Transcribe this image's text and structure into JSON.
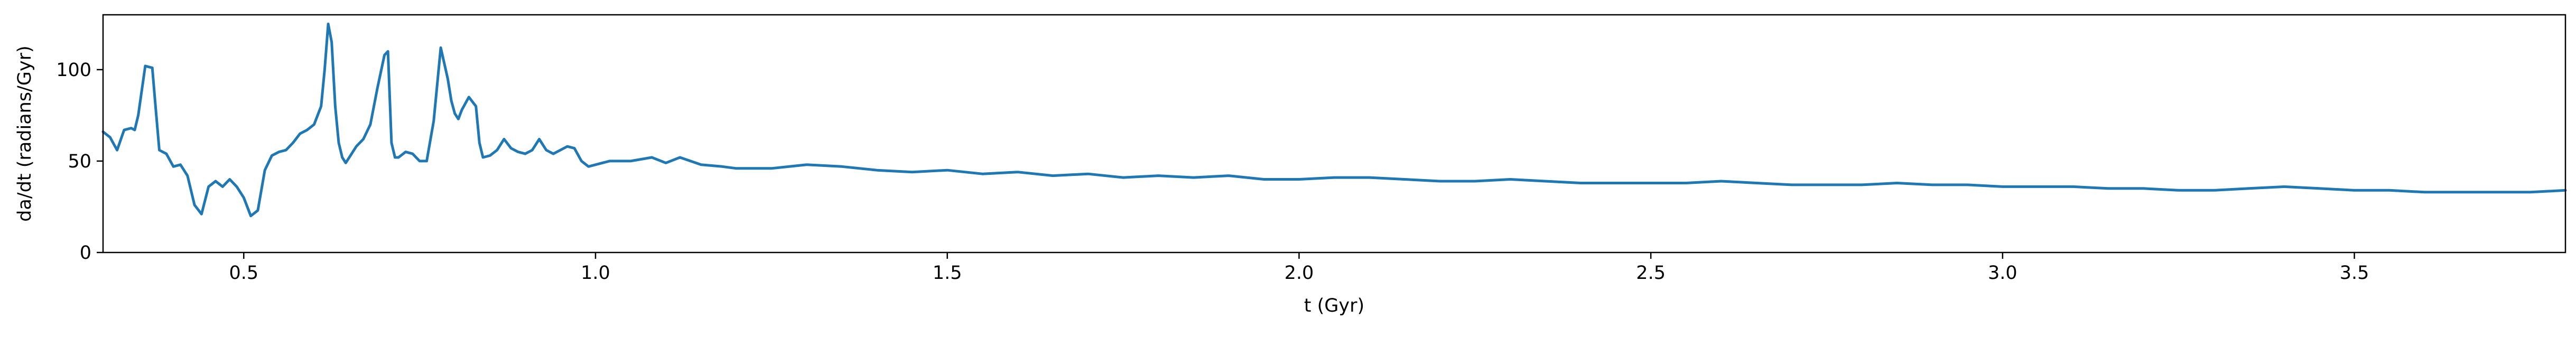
{
  "chart_data": {
    "type": "line",
    "title": "",
    "xlabel": "t (Gyr)",
    "ylabel": "da/dt (radians/Gyr)",
    "xlim": [
      0.3,
      3.8
    ],
    "ylim": [
      0,
      130
    ],
    "xticks": [
      0.5,
      1.0,
      1.5,
      2.0,
      2.5,
      3.0,
      3.5
    ],
    "xtick_labels": [
      "0.5",
      "1.0",
      "1.5",
      "2.0",
      "2.5",
      "3.0",
      "3.5"
    ],
    "yticks": [
      0,
      50,
      100
    ],
    "ytick_labels": [
      "0",
      "50",
      "100"
    ],
    "grid": false,
    "legend": "none",
    "line_color": "#1f77b4",
    "series": [
      {
        "x": [
          0.3,
          0.31,
          0.32,
          0.33,
          0.34,
          0.345,
          0.35,
          0.36,
          0.37,
          0.375,
          0.38,
          0.39,
          0.4,
          0.41,
          0.42,
          0.43,
          0.44,
          0.45,
          0.46,
          0.47,
          0.48,
          0.49,
          0.5,
          0.51,
          0.52,
          0.53,
          0.54,
          0.55,
          0.56,
          0.57,
          0.58,
          0.59,
          0.6,
          0.61,
          0.615,
          0.62,
          0.625,
          0.63,
          0.635,
          0.64,
          0.645,
          0.65,
          0.66,
          0.67,
          0.68,
          0.69,
          0.7,
          0.705,
          0.71,
          0.715,
          0.72,
          0.73,
          0.74,
          0.75,
          0.76,
          0.77,
          0.78,
          0.79,
          0.795,
          0.8,
          0.805,
          0.81,
          0.82,
          0.83,
          0.835,
          0.84,
          0.85,
          0.86,
          0.87,
          0.88,
          0.89,
          0.9,
          0.91,
          0.92,
          0.93,
          0.94,
          0.95,
          0.96,
          0.97,
          0.98,
          0.99,
          1.0,
          1.02,
          1.05,
          1.08,
          1.1,
          1.12,
          1.15,
          1.18,
          1.2,
          1.25,
          1.3,
          1.35,
          1.4,
          1.45,
          1.5,
          1.55,
          1.6,
          1.65,
          1.7,
          1.75,
          1.8,
          1.85,
          1.9,
          1.95,
          2.0,
          2.05,
          2.1,
          2.15,
          2.2,
          2.25,
          2.3,
          2.35,
          2.4,
          2.45,
          2.5,
          2.55,
          2.6,
          2.65,
          2.7,
          2.75,
          2.8,
          2.85,
          2.9,
          2.95,
          3.0,
          3.05,
          3.1,
          3.15,
          3.2,
          3.25,
          3.3,
          3.35,
          3.4,
          3.45,
          3.5,
          3.55,
          3.6,
          3.65,
          3.7,
          3.75,
          3.8
        ],
        "y": [
          66,
          63,
          56,
          67,
          68,
          67,
          75,
          102,
          101,
          78,
          56,
          54,
          47,
          48,
          42,
          26,
          21,
          36,
          39,
          36,
          40,
          36,
          30,
          20,
          23,
          45,
          53,
          55,
          56,
          60,
          65,
          67,
          70,
          80,
          100,
          125,
          115,
          80,
          60,
          52,
          49,
          52,
          58,
          62,
          70,
          90,
          108,
          110,
          60,
          52,
          52,
          55,
          54,
          50,
          50,
          72,
          112,
          95,
          83,
          76,
          73,
          78,
          85,
          80,
          60,
          52,
          53,
          56,
          62,
          57,
          55,
          54,
          56,
          62,
          56,
          54,
          56,
          58,
          57,
          50,
          47,
          48,
          50,
          50,
          52,
          49,
          52,
          48,
          47,
          46,
          46,
          48,
          47,
          45,
          44,
          45,
          43,
          44,
          42,
          43,
          41,
          42,
          41,
          42,
          40,
          40,
          41,
          41,
          40,
          39,
          39,
          40,
          39,
          38,
          38,
          38,
          38,
          39,
          38,
          37,
          37,
          37,
          38,
          37,
          37,
          36,
          36,
          36,
          35,
          35,
          34,
          34,
          35,
          36,
          35,
          34,
          34,
          33,
          33,
          33,
          33,
          34
        ]
      }
    ]
  }
}
